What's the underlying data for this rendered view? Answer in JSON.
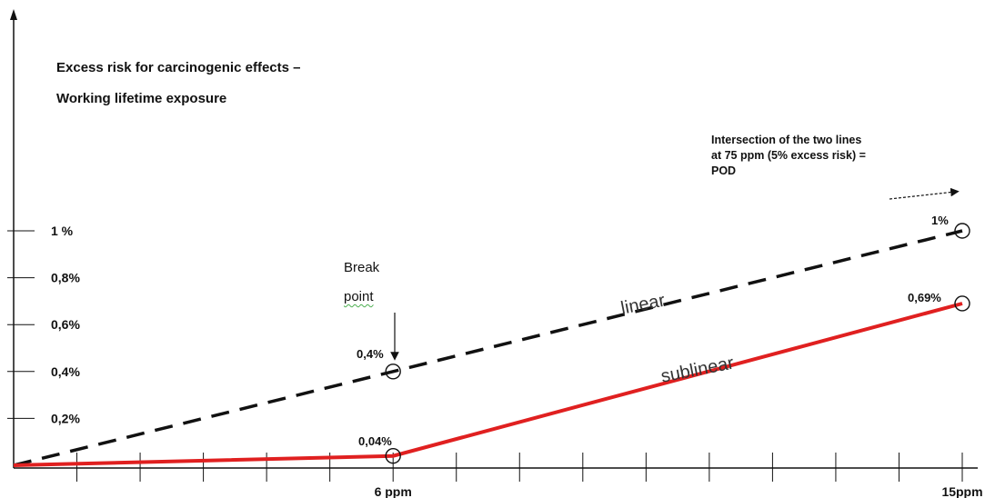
{
  "chart_data": {
    "type": "line",
    "title": "Excess risk for carcinogenic effects –",
    "subtitle": "Working lifetime exposure",
    "y_ticks": [
      {
        "label": "0,2%",
        "value": 0.2
      },
      {
        "label": "0,4%",
        "value": 0.4
      },
      {
        "label": "0,6%",
        "value": 0.6
      },
      {
        "label": "0,8%",
        "value": 0.8
      },
      {
        "label": "1 %",
        "value": 1.0
      }
    ],
    "x_tick_labels": [
      {
        "label": "6 ppm",
        "value": 6
      },
      {
        "label": "15ppm",
        "value": 15
      }
    ],
    "xlim": [
      0,
      15
    ],
    "ylim": [
      0,
      1.05
    ],
    "series": [
      {
        "name": "linear",
        "style": "dashed",
        "color": "#111111",
        "x": [
          0,
          6,
          15
        ],
        "y": [
          0,
          0.4,
          1.0
        ]
      },
      {
        "name": "sublinear",
        "style": "solid",
        "color": "#e02020",
        "x": [
          0,
          6,
          15
        ],
        "y": [
          0,
          0.04,
          0.69
        ]
      }
    ],
    "point_labels": [
      {
        "text": "0,4%",
        "x": 6,
        "y": 0.4
      },
      {
        "text": "0,04%",
        "x": 6,
        "y": 0.04
      },
      {
        "text": "1%",
        "x": 15,
        "y": 1.0
      },
      {
        "text": "0,69%",
        "x": 15,
        "y": 0.69
      }
    ],
    "annotations": {
      "break_point": [
        "Break",
        "point"
      ],
      "intersection_note": [
        "Intersection of the two  lines",
        "at 75 ppm (5% excess risk) =",
        "POD"
      ]
    }
  }
}
